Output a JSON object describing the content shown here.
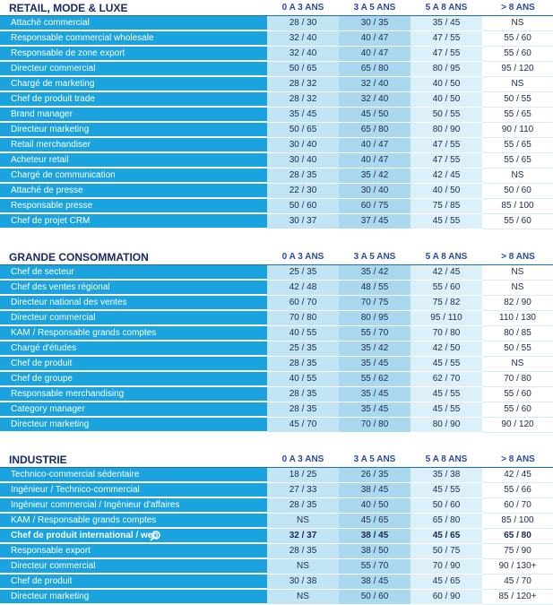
{
  "sections": [
    {
      "title": "RETAIL, MODE & LUXE",
      "columns": [
        "0 A 3 ANS",
        "3 A 5 ANS",
        "5 A 8 ANS",
        "> 8 ANS"
      ],
      "rows": [
        {
          "label": "Attaché commercial",
          "cells": [
            "28 / 30",
            "30 / 35",
            "35 / 45",
            "NS"
          ]
        },
        {
          "label": "Responsable commercial wholesale",
          "cells": [
            "32 / 40",
            "40 / 47",
            "47 / 55",
            "55 / 60"
          ]
        },
        {
          "label": "Responsable de zone export",
          "cells": [
            "32 / 40",
            "40 / 47",
            "47 / 55",
            "55 / 60"
          ]
        },
        {
          "label": "Directeur commercial",
          "cells": [
            "50 / 65",
            "65 / 80",
            "80 / 95",
            "95 / 120"
          ]
        },
        {
          "label": "Chargé de marketing",
          "cells": [
            "28 / 32",
            "32 / 40",
            "40 / 50",
            "NS"
          ]
        },
        {
          "label": "Chef de produit trade",
          "cells": [
            "28 / 32",
            "32 / 40",
            "40 / 50",
            "50 / 55"
          ]
        },
        {
          "label": "Brand manager",
          "cells": [
            "35 / 45",
            "45 / 50",
            "50 / 55",
            "55 / 65"
          ]
        },
        {
          "label": "Directeur marketing",
          "cells": [
            "50 / 65",
            "65 / 80",
            "80 / 90",
            "90 / 110"
          ]
        },
        {
          "label": "Retail merchandiser",
          "cells": [
            "30 / 40",
            "40 / 47",
            "47 / 55",
            "55 / 65"
          ]
        },
        {
          "label": "Acheteur retail",
          "cells": [
            "30 / 40",
            "40 / 47",
            "47 / 55",
            "55 / 65"
          ]
        },
        {
          "label": "Chargé de communication",
          "cells": [
            "28 / 35",
            "35 / 42",
            "42 / 45",
            "NS"
          ]
        },
        {
          "label": "Attaché de presse",
          "cells": [
            "22 / 30",
            "30 / 40",
            "40 / 50",
            "50 / 60"
          ]
        },
        {
          "label": "Responsable presse",
          "cells": [
            "50 / 60",
            "60 / 75",
            "75 / 85",
            "85 / 100"
          ]
        },
        {
          "label": "Chef de projet CRM",
          "cells": [
            "30 / 37",
            "37 / 45",
            "45 / 55",
            "55 / 60"
          ]
        }
      ]
    },
    {
      "title": "GRANDE CONSOMMATION",
      "columns": [
        "0 A 3 ANS",
        "3 A 5 ANS",
        "5 A 8 ANS",
        "> 8 ANS"
      ],
      "rows": [
        {
          "label": "Chef de secteur",
          "cells": [
            "25 / 35",
            "35 / 42",
            "42 / 45",
            "NS"
          ]
        },
        {
          "label": "Chef des ventes régional",
          "cells": [
            "42 / 48",
            "48 / 55",
            "55 / 60",
            "NS"
          ]
        },
        {
          "label": "Directeur national des ventes",
          "cells": [
            "60 / 70",
            "70 / 75",
            "75 / 82",
            "82 / 90"
          ]
        },
        {
          "label": "Directeur commercial",
          "cells": [
            "70 / 80",
            "80 / 95",
            "95 / 110",
            "110 / 130"
          ]
        },
        {
          "label": "KAM / Responsable grands comptes",
          "cells": [
            "40 / 55",
            "55 / 70",
            "70 / 80",
            "80 / 85"
          ]
        },
        {
          "label": "Chargé d'études",
          "cells": [
            "25 / 35",
            "35 / 42",
            "42 / 50",
            "50 / 55"
          ]
        },
        {
          "label": "Chef de produit",
          "cells": [
            "28 / 35",
            "35 / 45",
            "45 / 55",
            "NS"
          ]
        },
        {
          "label": "Chef de groupe",
          "cells": [
            "40 / 55",
            "55 / 62",
            "62 / 70",
            "70 / 80"
          ]
        },
        {
          "label": "Responsable merchandising",
          "cells": [
            "28 / 35",
            "35 / 45",
            "45 / 55",
            "55 / 60"
          ]
        },
        {
          "label": "Category manager",
          "cells": [
            "28 / 35",
            "35 / 45",
            "45 / 55",
            "55 / 60"
          ]
        },
        {
          "label": "Directeur marketing",
          "cells": [
            "45 / 70",
            "70 / 80",
            "80 / 90",
            "90 / 120"
          ]
        }
      ]
    },
    {
      "title": "INDUSTRIE",
      "columns": [
        "0 A 3 ANS",
        "3 A 5 ANS",
        "5 A 8 ANS",
        "> 8 ANS"
      ],
      "rows": [
        {
          "label": "Technico-commercial sédentaire",
          "cells": [
            "18 / 25",
            "26 / 35",
            "35 / 38",
            "42 / 45"
          ]
        },
        {
          "label": "Ingénieur / Technico-commercial",
          "cells": [
            "27 / 33",
            "38 / 45",
            "45 / 55",
            "55 / 66"
          ]
        },
        {
          "label": "Ingénieur commercial / Ingénieur d'affaires",
          "cells": [
            "28 / 35",
            "40 / 50",
            "50 / 60",
            "60 / 70"
          ]
        },
        {
          "label": "KAM / Responsable grands comptes",
          "cells": [
            "NS",
            "45 / 65",
            "65 / 80",
            "85 / 100"
          ]
        },
        {
          "label": "Chef de produit international / web",
          "cells": [
            "32 / 37",
            "38 / 45",
            "45 / 65",
            "65 / 80"
          ]
        },
        {
          "label": "Responsable export",
          "cells": [
            "28 / 35",
            "38 / 50",
            "50 / 75",
            "75 / 90"
          ]
        },
        {
          "label": "Directeur commercial",
          "cells": [
            "NS",
            "55 / 70",
            "70 / 90",
            "90 / 130+"
          ]
        },
        {
          "label": "Chef de produit",
          "cells": [
            "30 / 38",
            "38 / 45",
            "45 / 65",
            "45 / 70"
          ]
        },
        {
          "label": "Directeur marketing",
          "cells": [
            "NS",
            "50 / 60",
            "60 / 90",
            "85 / 120+"
          ]
        }
      ]
    }
  ]
}
